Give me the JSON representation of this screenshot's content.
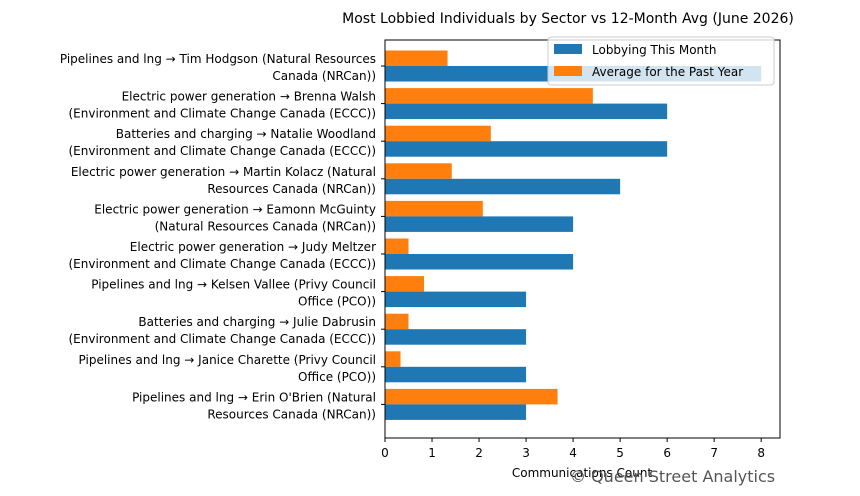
{
  "chart_data": {
    "type": "bar",
    "orientation": "horizontal",
    "title": "Most Lobbied Individuals by Sector vs 12-Month Avg (June 2026)",
    "xlabel": "Communications Count",
    "ylabel": "",
    "xlim": [
      0,
      8.4
    ],
    "xticks": [
      0,
      1,
      2,
      3,
      4,
      5,
      6,
      7,
      8
    ],
    "grid": false,
    "legend_position": "top-right",
    "categories": [
      [
        "Pipelines and lng → Tim Hodgson (Natural Resources",
        "Canada (NRCan))"
      ],
      [
        "Electric power generation → Brenna Walsh",
        "(Environment and Climate Change Canada (ECCC))"
      ],
      [
        "Batteries and charging → Natalie Woodland",
        "(Environment and Climate Change Canada (ECCC))"
      ],
      [
        "Electric power generation → Martin Kolacz (Natural",
        "Resources Canada (NRCan))"
      ],
      [
        "Electric power generation → Eamonn McGuinty",
        "(Natural Resources Canada (NRCan))"
      ],
      [
        "Electric power generation → Judy Meltzer",
        "(Environment and Climate Change Canada (ECCC))"
      ],
      [
        "Pipelines and lng → Kelsen Vallee (Privy Council",
        "Office (PCO))"
      ],
      [
        "Batteries and charging → Julie Dabrusin",
        "(Environment and Climate Change Canada (ECCC))"
      ],
      [
        "Pipelines and lng → Janice Charette (Privy Council",
        "Office (PCO))"
      ],
      [
        "Pipelines and lng → Erin O'Brien (Natural",
        "Resources Canada (NRCan))"
      ]
    ],
    "series": [
      {
        "name": "Lobbying This Month",
        "color": "#1f77b4",
        "values": [
          8,
          6,
          6,
          5,
          4,
          4,
          3,
          3,
          3,
          3
        ]
      },
      {
        "name": "Average for the Past Year",
        "color": "#ff7f0e",
        "values": [
          1.33,
          4.42,
          2.25,
          1.42,
          2.08,
          0.5,
          0.83,
          0.5,
          0.33,
          3.67
        ]
      }
    ]
  },
  "watermark": "© Queen Street Analytics"
}
